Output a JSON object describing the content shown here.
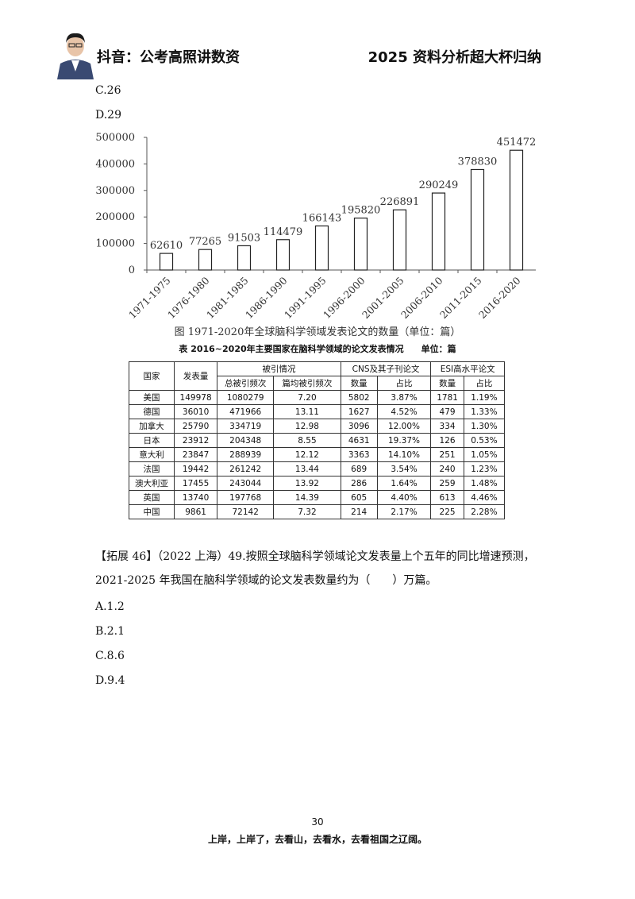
{
  "header": {
    "left": "抖音：公考高照讲数资",
    "right": "2025 资料分析超大杯归纳"
  },
  "options_top": [
    "C.26",
    "D.29"
  ],
  "chart_data": {
    "type": "bar",
    "categories": [
      "1971-1975",
      "1976-1980",
      "1981-1985",
      "1986-1990",
      "1991-1995",
      "1996-2000",
      "2001-2005",
      "2006-2010",
      "2011-2015",
      "2016-2020"
    ],
    "values": [
      62610,
      77265,
      91503,
      114479,
      166143,
      195820,
      226891,
      290249,
      378830,
      451472
    ],
    "y_ticks": [
      "500000",
      "400000",
      "300000",
      "200000",
      "100000",
      "0"
    ],
    "ylim": [
      0,
      500000
    ],
    "caption": "图 1971-2020年全球脑科学领域发表论文的数量（单位：篇）"
  },
  "table": {
    "caption": "表 2016~2020年主要国家在脑科学领域的论文发表情况　　单位：篇",
    "h1": [
      "国家",
      "发表量",
      "被引情况",
      "CNS及其子刊论文",
      "ESI高水平论文"
    ],
    "h2": [
      "总被引频次",
      "篇均被引频次",
      "数量",
      "占比",
      "数量",
      "占比"
    ],
    "rows": [
      [
        "美国",
        "149978",
        "1080279",
        "7.20",
        "5802",
        "3.87%",
        "1781",
        "1.19%"
      ],
      [
        "德国",
        "36010",
        "471966",
        "13.11",
        "1627",
        "4.52%",
        "479",
        "1.33%"
      ],
      [
        "加拿大",
        "25790",
        "334719",
        "12.98",
        "3096",
        "12.00%",
        "334",
        "1.30%"
      ],
      [
        "日本",
        "23912",
        "204348",
        "8.55",
        "4631",
        "19.37%",
        "126",
        "0.53%"
      ],
      [
        "意大利",
        "23847",
        "288939",
        "12.12",
        "3363",
        "14.10%",
        "251",
        "1.05%"
      ],
      [
        "法国",
        "19442",
        "261242",
        "13.44",
        "689",
        "3.54%",
        "240",
        "1.23%"
      ],
      [
        "澳大利亚",
        "17455",
        "243044",
        "13.92",
        "286",
        "1.64%",
        "259",
        "1.48%"
      ],
      [
        "英国",
        "13740",
        "197768",
        "14.39",
        "605",
        "4.40%",
        "613",
        "4.46%"
      ],
      [
        "中国",
        "9861",
        "72142",
        "7.32",
        "214",
        "2.17%",
        "225",
        "2.28%"
      ]
    ]
  },
  "question": {
    "line1": "【拓展 46】（2022 上海）49.按照全球脑科学领域论文发表量上个五年的同比增速预测，",
    "line2": "2021-2025 年我国在脑科学领域的论文发表数量约为（　　）万篇。",
    "options": [
      "A.1.2",
      "B.2.1",
      "C.8.6",
      "D.9.4"
    ]
  },
  "page_number": "30",
  "footer": "上岸，上岸了，去看山，去看水，去看祖国之辽阔。"
}
